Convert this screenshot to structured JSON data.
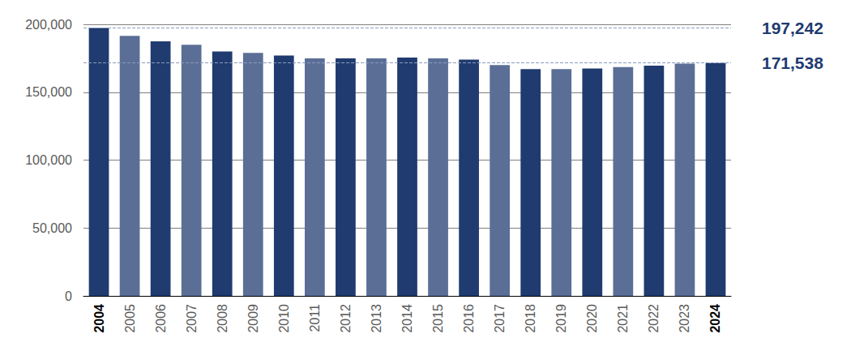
{
  "chart_data": {
    "type": "bar",
    "categories": [
      "2004",
      "2005",
      "2006",
      "2007",
      "2008",
      "2009",
      "2010",
      "2011",
      "2012",
      "2013",
      "2014",
      "2015",
      "2016",
      "2017",
      "2018",
      "2019",
      "2020",
      "2021",
      "2022",
      "2023",
      "2024"
    ],
    "values": [
      197242,
      191500,
      187500,
      185000,
      180000,
      179000,
      177000,
      175000,
      175000,
      175000,
      175500,
      175000,
      174000,
      170000,
      167000,
      167000,
      167500,
      168500,
      169500,
      171000,
      171538
    ],
    "colors": [
      "#1f3b6f",
      "#5a6e96",
      "#1f3b6f",
      "#5a6e96",
      "#1f3b6f",
      "#5a6e96",
      "#1f3b6f",
      "#5a6e96",
      "#1f3b6f",
      "#5a6e96",
      "#1f3b6f",
      "#5a6e96",
      "#1f3b6f",
      "#5a6e96",
      "#1f3b6f",
      "#5a6e96",
      "#1f3b6f",
      "#5a6e96",
      "#1f3b6f",
      "#5a6e96",
      "#1f3b6f"
    ],
    "ylim": [
      0,
      200000
    ],
    "yticks": [
      {
        "value": 0,
        "label": "0"
      },
      {
        "value": 50000,
        "label": "50,000"
      },
      {
        "value": 100000,
        "label": "100,000"
      },
      {
        "value": 150000,
        "label": "150,000"
      },
      {
        "value": 200000,
        "label": "200,000"
      }
    ],
    "annotations": [
      {
        "value": 197242,
        "label": "197,242"
      },
      {
        "value": 171538,
        "label": "171,538"
      }
    ],
    "grid": true,
    "data_labels": false
  }
}
